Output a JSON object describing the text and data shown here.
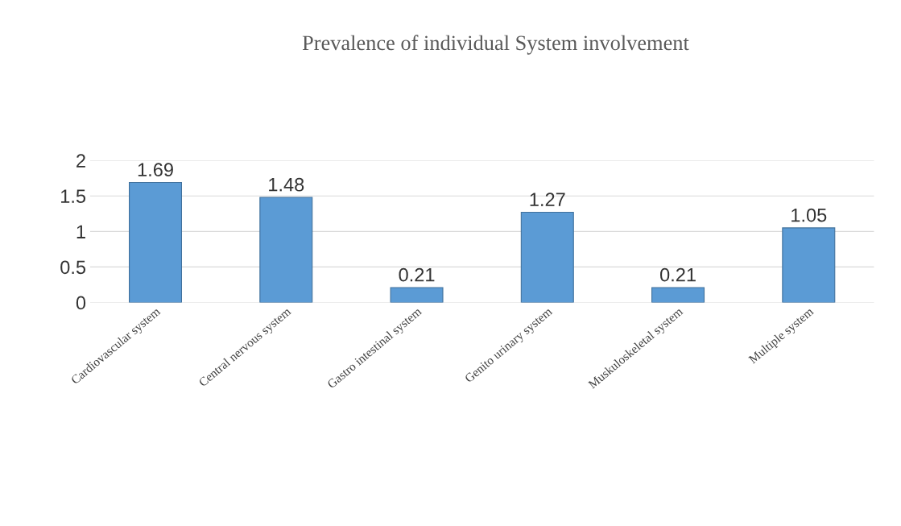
{
  "chart_data": {
    "type": "bar",
    "title": "Prevalence of individual System involvement",
    "categories": [
      "Cardiovascular system",
      "Central nervous system",
      "Gastro intestinal system",
      "Genito urinary system",
      "Muskuloskeletal system",
      "Multiple system"
    ],
    "values": [
      1.69,
      1.48,
      0.21,
      1.27,
      0.21,
      1.05
    ],
    "color": "#5b9bd5",
    "ylim": [
      0,
      2
    ],
    "yticks": [
      0,
      0.5,
      1,
      1.5,
      2
    ],
    "grid": "y",
    "data_labels": true
  }
}
